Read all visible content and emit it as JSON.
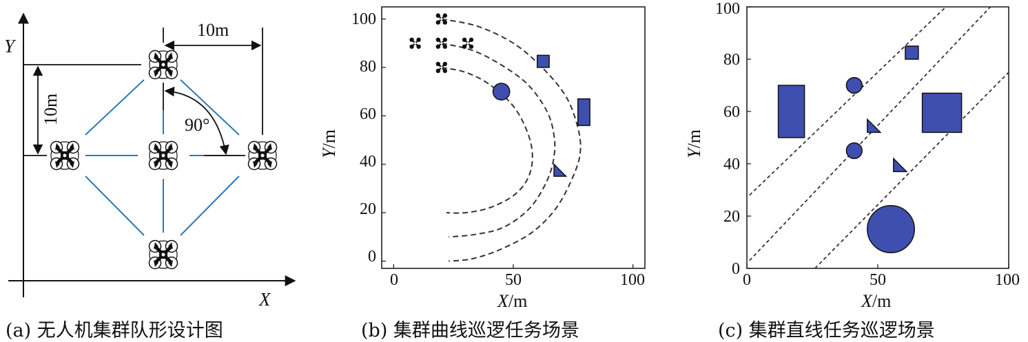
{
  "panel_a": {
    "caption": "(a) 无人机集群队形设计图",
    "x_axis_label": "X",
    "y_axis_label": "Y",
    "horizontal_dim": "10m",
    "vertical_dim": "10m",
    "angle_label": "90°"
  },
  "panel_b": {
    "caption": "(b) 集群曲线巡逻任务场景",
    "xlabel_var": "X",
    "xlabel_unit": "/m",
    "ylabel_var": "Y",
    "ylabel_unit": "/m",
    "xticks": [
      "0",
      "50",
      "100"
    ],
    "yticks": [
      "0",
      "20",
      "40",
      "60",
      "80",
      "100"
    ]
  },
  "panel_c": {
    "caption": "(c) 集群直线任务巡逻场景",
    "xlabel_var": "X",
    "xlabel_unit": "/m",
    "ylabel_var": "Y",
    "ylabel_unit": "/m",
    "xticks": [
      "0",
      "50",
      "100"
    ],
    "yticks": [
      "0",
      "20",
      "40",
      "60",
      "80",
      "100"
    ]
  },
  "colors": {
    "obstacle_fill": "#3f4fb0",
    "formation_link": "#2a78b8",
    "path_dash": "#333333"
  },
  "chart_data": [
    {
      "type": "scatter",
      "panel": "b",
      "xlim": [
        -5,
        105
      ],
      "ylim": [
        -3,
        105
      ],
      "paths": [
        {
          "style": "dashed",
          "points": [
            [
              20,
              100
            ],
            [
              35,
              97
            ],
            [
              50,
              90
            ],
            [
              62,
              80
            ],
            [
              72,
              68
            ],
            [
              77,
              55
            ],
            [
              78,
              45
            ],
            [
              75,
              35
            ],
            [
              68,
              22
            ],
            [
              58,
              12
            ],
            [
              45,
              5
            ],
            [
              33,
              1
            ],
            [
              23,
              0
            ]
          ]
        },
        {
          "style": "dashed",
          "points": [
            [
              20,
              90
            ],
            [
              33,
              87
            ],
            [
              45,
              81
            ],
            [
              56,
              73
            ],
            [
              64,
              62
            ],
            [
              67,
              52
            ],
            [
              67,
              43
            ],
            [
              64,
              33
            ],
            [
              57,
              22
            ],
            [
              46,
              14
            ],
            [
              34,
              11
            ],
            [
              23,
              10
            ]
          ]
        },
        {
          "style": "dashed",
          "points": [
            [
              20,
              80
            ],
            [
              30,
              78
            ],
            [
              40,
              73
            ],
            [
              50,
              64
            ],
            [
              56,
              53
            ],
            [
              58,
              43
            ],
            [
              56,
              34
            ],
            [
              50,
              27
            ],
            [
              40,
              22
            ],
            [
              30,
              20
            ],
            [
              22,
              20
            ]
          ]
        }
      ],
      "uavs": [
        [
          20,
          100
        ],
        [
          9,
          90
        ],
        [
          20,
          90
        ],
        [
          31,
          90
        ],
        [
          20,
          80
        ]
      ],
      "obstacles": [
        {
          "shape": "square",
          "x": 62.5,
          "y": 82.5,
          "size": 5
        },
        {
          "shape": "circle",
          "x": 45,
          "y": 70,
          "r": 3.5
        },
        {
          "shape": "rect",
          "x": 77,
          "y": 56,
          "w": 5,
          "h": 11
        },
        {
          "shape": "triangle",
          "x": 67,
          "y": 40,
          "size": 5
        }
      ]
    },
    {
      "type": "scatter",
      "panel": "c",
      "xlim": [
        0,
        100
      ],
      "ylim": [
        0,
        100
      ],
      "lines": [
        {
          "style": "dashed",
          "points": [
            [
              1,
              28
            ],
            [
              76,
              100
            ]
          ]
        },
        {
          "style": "dashed",
          "points": [
            [
              1,
              3
            ],
            [
              93,
              100
            ]
          ]
        },
        {
          "style": "dashed",
          "points": [
            [
              26,
              0
            ],
            [
              100,
              75
            ]
          ]
        }
      ],
      "obstacles": [
        {
          "shape": "rect",
          "x": 12,
          "y": 50,
          "w": 10,
          "h": 20
        },
        {
          "shape": "circle",
          "x": 41,
          "y": 70,
          "r": 3
        },
        {
          "shape": "circle",
          "x": 41,
          "y": 45,
          "r": 3
        },
        {
          "shape": "triangle",
          "x": 46,
          "y": 57,
          "size": 5
        },
        {
          "shape": "triangle",
          "x": 56,
          "y": 42,
          "size": 5
        },
        {
          "shape": "square",
          "x": 63,
          "y": 82.5,
          "size": 5
        },
        {
          "shape": "rect",
          "x": 67,
          "y": 52,
          "w": 15,
          "h": 15
        },
        {
          "shape": "circle",
          "x": 55,
          "y": 15,
          "r": 9
        }
      ]
    }
  ]
}
